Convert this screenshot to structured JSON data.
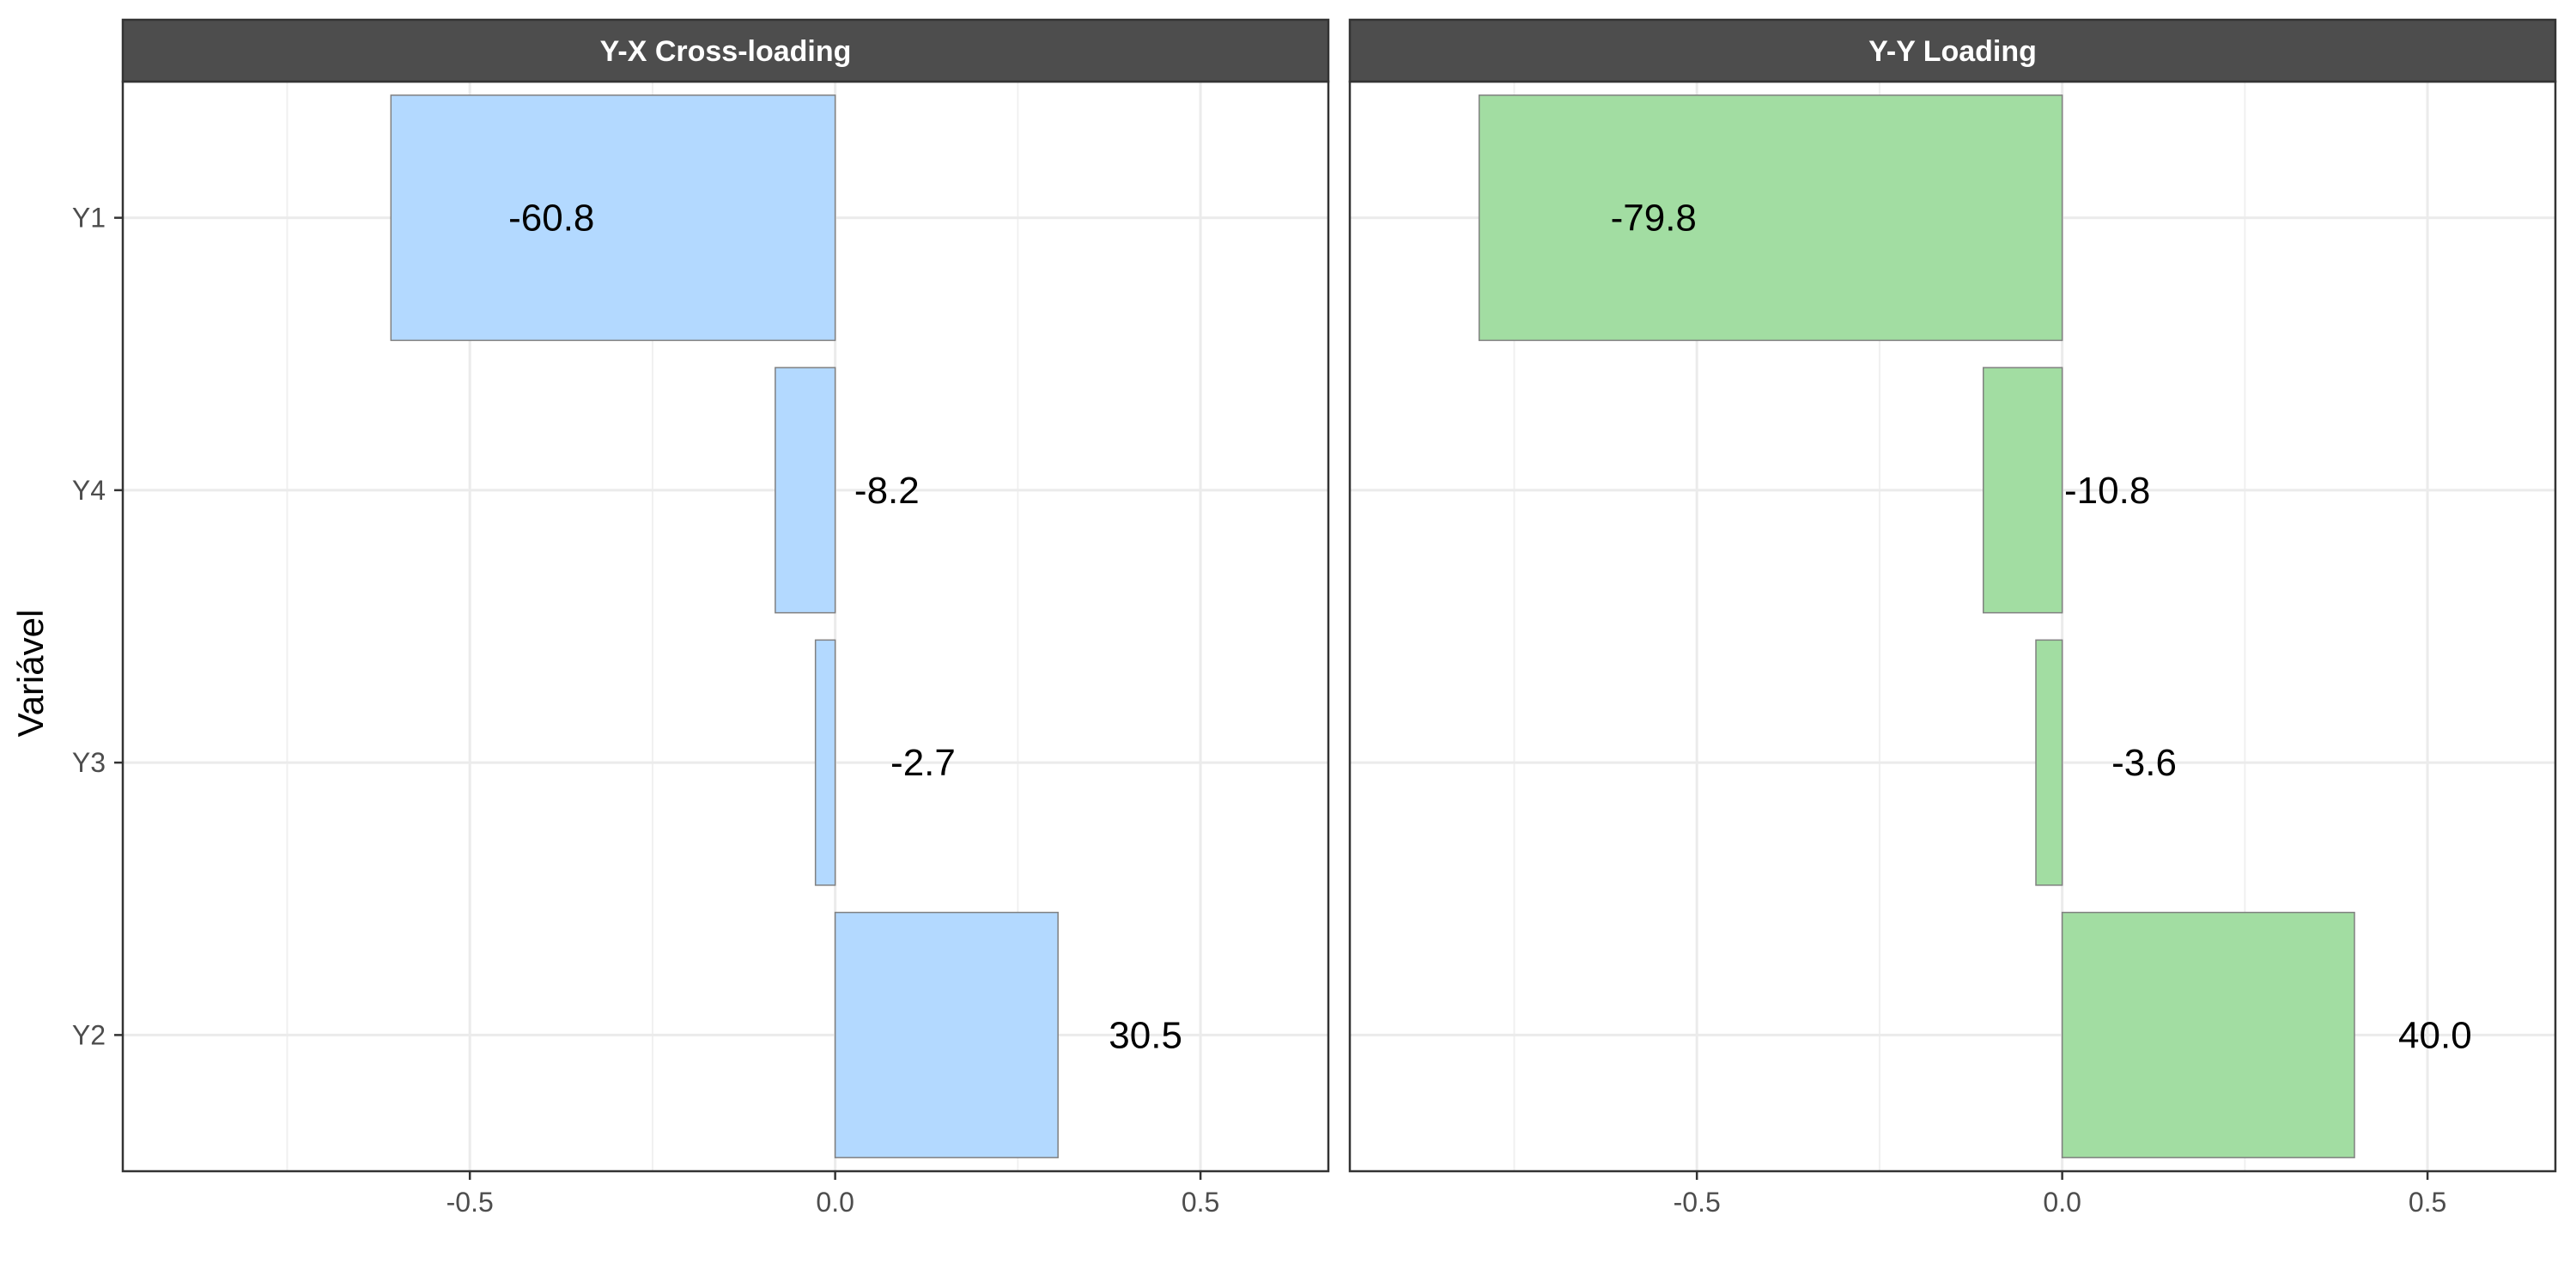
{
  "chart_data": {
    "type": "bar",
    "orientation": "horizontal",
    "ylabel": "Variável",
    "categories_top_to_bottom": [
      "Y1",
      "Y4",
      "Y3",
      "Y2"
    ],
    "xlim": [
      -0.975,
      0.675
    ],
    "x_ticks": [
      -0.5,
      0.0,
      0.5
    ],
    "x_tick_labels": [
      "-0.5",
      "0.0",
      "0.5"
    ],
    "grid": true,
    "panels": [
      {
        "title": "Y-X Cross-loading",
        "fill_color": "#b3d9ff",
        "values": [
          -0.608,
          -0.082,
          -0.027,
          0.305
        ],
        "value_labels": [
          "-60.8",
          "-8.2",
          "-2.7",
          "30.5"
        ]
      },
      {
        "title": "Y-Y Loading",
        "fill_color": "#a2dda2",
        "values": [
          -0.798,
          -0.108,
          -0.036,
          0.4
        ],
        "value_labels": [
          "-79.8",
          "-10.8",
          "-3.6",
          "40.0"
        ]
      }
    ]
  }
}
